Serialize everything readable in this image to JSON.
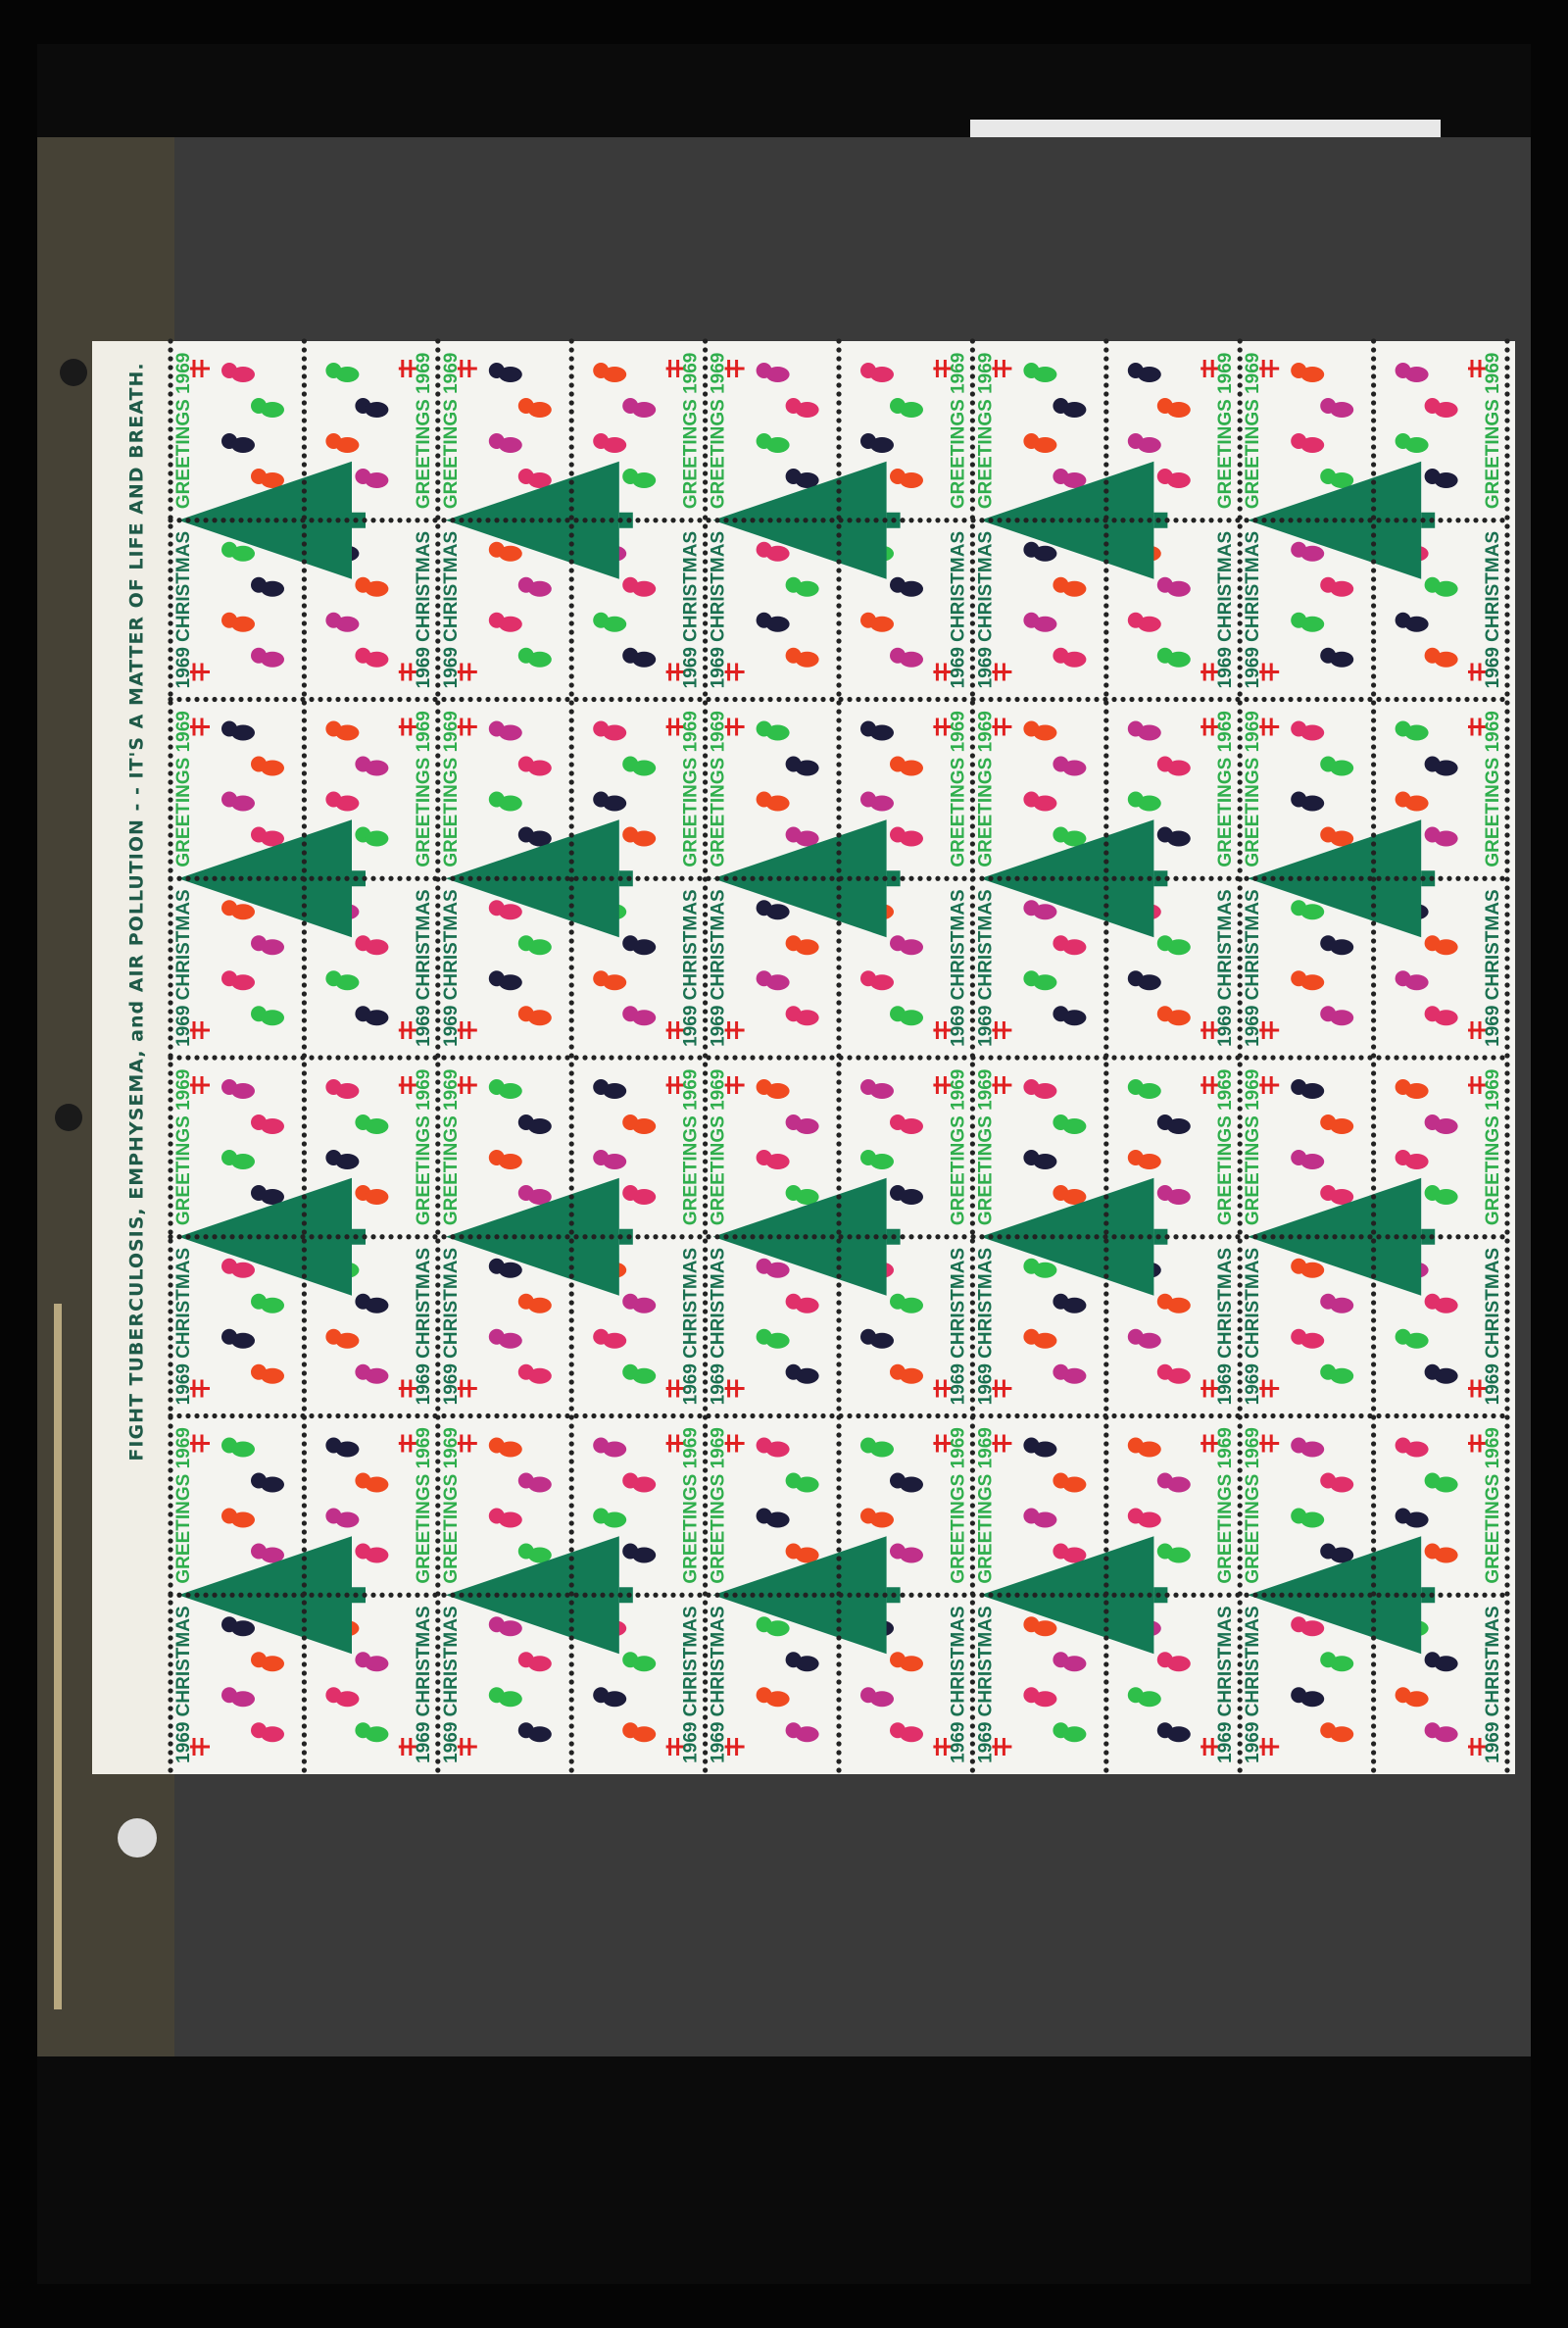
{
  "margin_text": "FIGHT TUBERCULOSIS, EMPHYSEMA, and AIR POLLUTION - - IT'S A MATTER OF LIFE AND BREATH.",
  "stamp": {
    "greeting": "GREETINGS 1969",
    "christmas": "1969 CHRISTMAS"
  }
}
